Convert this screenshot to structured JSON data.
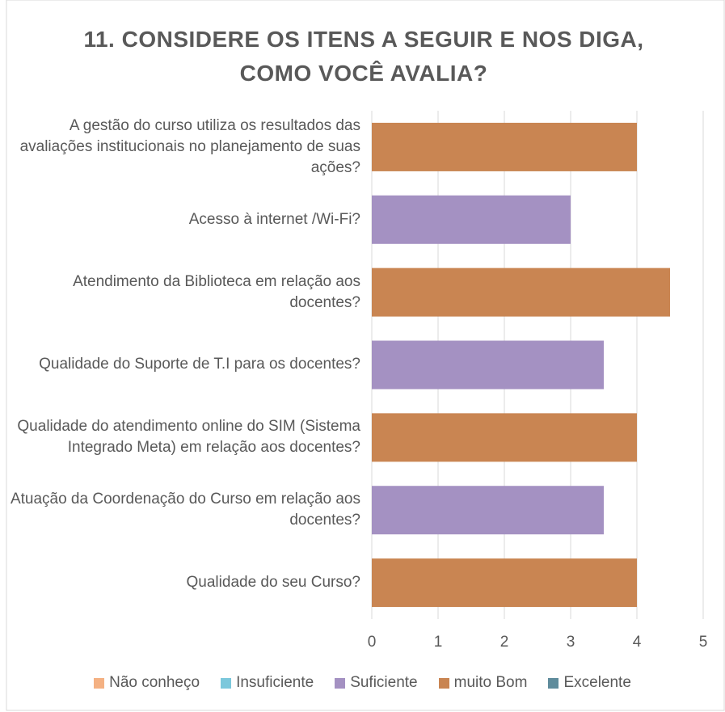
{
  "chart_data": {
    "type": "bar",
    "orientation": "horizontal",
    "stacked": true,
    "title": "11. CONSIDERE OS ITENS A SEGUIR E NOS DIGA, COMO VOCÊ AVALIA?",
    "categories": [
      "A gestão do curso utiliza os resultados das avaliações institucionais no planejamento de suas ações?",
      "Acesso à  internet /Wi-Fi?",
      "Atendimento da Biblioteca em relação aos docentes?",
      "Qualidade do Suporte de T.I para os docentes?",
      "Qualidade do atendimento online do SIM (Sistema Integrado Meta) em relação aos docentes?",
      "Atuação da Coordenação do Curso em relação aos docentes?",
      "Qualidade do seu Curso?"
    ],
    "series": [
      {
        "name": "Não conheço",
        "color": "#f4b183",
        "values": [
          null,
          null,
          null,
          null,
          null,
          null,
          null
        ]
      },
      {
        "name": "Insuficiente",
        "color": "#7cc8dc",
        "values": [
          null,
          null,
          null,
          null,
          null,
          null,
          null
        ]
      },
      {
        "name": "Suficiente",
        "color": "#a491c2",
        "values": [
          null,
          3,
          null,
          3.5,
          null,
          3.5,
          null
        ]
      },
      {
        "name": "muito Bom",
        "color": "#c98552",
        "values": [
          4,
          null,
          4.5,
          null,
          4,
          null,
          4
        ]
      },
      {
        "name": "Excelente",
        "color": "#5f8c9c",
        "values": [
          null,
          null,
          null,
          null,
          null,
          null,
          null
        ]
      }
    ],
    "xlim": [
      0,
      5
    ],
    "xticks": [
      0,
      1,
      2,
      3,
      4,
      5
    ],
    "grid": true,
    "legend": "bottom"
  }
}
